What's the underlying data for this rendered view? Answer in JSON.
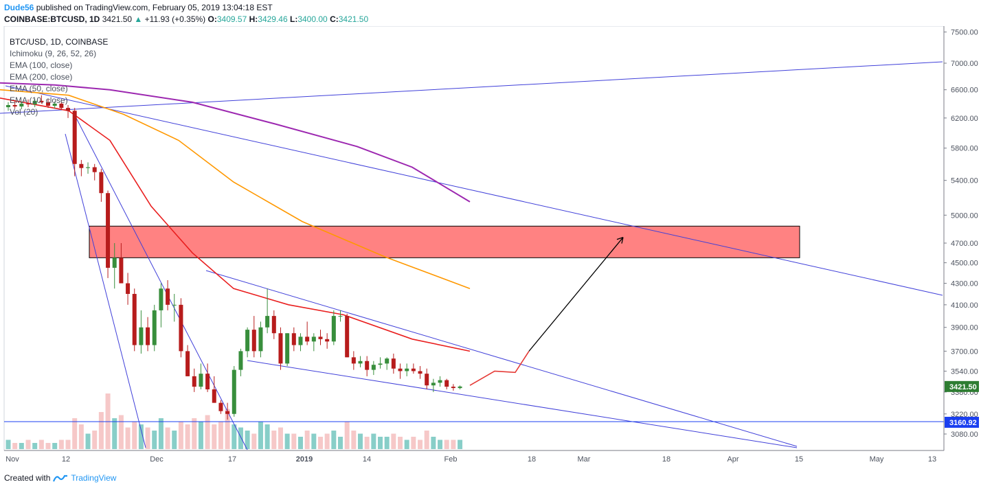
{
  "header": {
    "author": "Dude56",
    "published": "published on TradingView.com, February 05, 2019 13:04:18 EST",
    "symbol": "COINBASE:BTCUSD, 1D",
    "last": "3421.50",
    "change": "+11.93 (+0.35%)",
    "o_label": "O:",
    "o_val": "3409.57",
    "h_label": "H:",
    "h_val": "3429.46",
    "l_label": "L:",
    "l_val": "3400.00",
    "c_label": "C:",
    "c_val": "3421.50"
  },
  "legend": {
    "title": "BTC/USD, 1D, COINBASE",
    "items": [
      "Ichimoku (9, 26, 52, 26)",
      "EMA (100, close)",
      "EMA (200, close)",
      "EMA (50, close)",
      "EMA (10, close)",
      "Vol (20)"
    ]
  },
  "footer": {
    "created": "Created with",
    "brand": "TradingView"
  },
  "colors": {
    "up": "#26a69a",
    "upBody": "#388e3c",
    "down": "#b71c1c",
    "zone": "#ff5252",
    "ema200": "#9c27b0",
    "ema100": "#ff9800",
    "ema50": "#e91e1e",
    "trend": "#3f3fd9",
    "lastTag": "#2e7d32",
    "levelTag": "#1a3ff0"
  },
  "chart_data": {
    "type": "candlestick",
    "symbol": "BTC/USD, 1D, COINBASE",
    "y_ticks": [
      7500,
      7000,
      6600,
      6200,
      5800,
      5400,
      5000,
      4700,
      4500,
      4300,
      4100,
      3900,
      3700,
      3540,
      3380,
      3220,
      3080
    ],
    "x_ticks": [
      "Nov",
      "12",
      "Dec",
      "17",
      "2019",
      "14",
      "Feb",
      "18",
      "Mar",
      "18",
      "Apr",
      "15",
      "May",
      "13"
    ],
    "last_price": "3421.50",
    "level": "3160.92",
    "resistance_zone": [
      4550,
      4880
    ],
    "candles_ohlc": [
      [
        6350,
        6420,
        6300,
        6380
      ],
      [
        6380,
        6440,
        6330,
        6360
      ],
      [
        6360,
        6430,
        6320,
        6400
      ],
      [
        6400,
        6460,
        6350,
        6390
      ],
      [
        6390,
        6470,
        6350,
        6440
      ],
      [
        6440,
        6520,
        6400,
        6420
      ],
      [
        6420,
        6460,
        6340,
        6370
      ],
      [
        6370,
        6430,
        6330,
        6400
      ],
      [
        6400,
        6420,
        6310,
        6340
      ],
      [
        6340,
        6380,
        6200,
        6300
      ],
      [
        6300,
        6340,
        5450,
        5600
      ],
      [
        5600,
        5650,
        5450,
        5550
      ],
      [
        5550,
        5620,
        5480,
        5560
      ],
      [
        5560,
        5600,
        5400,
        5500
      ],
      [
        5500,
        5540,
        5150,
        5250
      ],
      [
        5250,
        5280,
        4350,
        4450
      ],
      [
        4450,
        4700,
        4250,
        4550
      ],
      [
        4550,
        4700,
        4300,
        4300
      ],
      [
        4300,
        4400,
        4100,
        4200
      ],
      [
        4200,
        4250,
        3700,
        3750
      ],
      [
        3750,
        4050,
        3680,
        3900
      ],
      [
        3900,
        3990,
        3700,
        3750
      ],
      [
        3750,
        4100,
        3700,
        4050
      ],
      [
        4050,
        4300,
        3900,
        4250
      ],
      [
        4250,
        4330,
        4050,
        4100
      ],
      [
        4100,
        4200,
        3950,
        4100
      ],
      [
        4100,
        4160,
        3650,
        3700
      ],
      [
        3700,
        3750,
        3500,
        3500
      ],
      [
        3500,
        3560,
        3380,
        3420
      ],
      [
        3420,
        3600,
        3400,
        3520
      ],
      [
        3520,
        3600,
        3380,
        3400
      ],
      [
        3400,
        3500,
        3300,
        3300
      ],
      [
        3300,
        3320,
        3220,
        3240
      ],
      [
        3240,
        3300,
        3180,
        3220
      ],
      [
        3220,
        3580,
        3200,
        3550
      ],
      [
        3550,
        3720,
        3500,
        3700
      ],
      [
        3700,
        3900,
        3650,
        3880
      ],
      [
        3880,
        4000,
        3650,
        3700
      ],
      [
        3700,
        3950,
        3650,
        3900
      ],
      [
        3900,
        4250,
        3850,
        4000
      ],
      [
        4000,
        4050,
        3800,
        3850
      ],
      [
        3850,
        3900,
        3550,
        3600
      ],
      [
        3600,
        3850,
        3580,
        3850
      ],
      [
        3850,
        3900,
        3700,
        3750
      ],
      [
        3750,
        3850,
        3700,
        3820
      ],
      [
        3820,
        3950,
        3750,
        3780
      ],
      [
        3780,
        3850,
        3700,
        3820
      ],
      [
        3820,
        3880,
        3750,
        3800
      ],
      [
        3800,
        3850,
        3720,
        3780
      ],
      [
        3780,
        4050,
        3750,
        4000
      ],
      [
        4000,
        4050,
        3950,
        4000
      ],
      [
        4000,
        4020,
        3650,
        3650
      ],
      [
        3650,
        3700,
        3550,
        3600
      ],
      [
        3600,
        3660,
        3570,
        3620
      ],
      [
        3620,
        3660,
        3500,
        3550
      ],
      [
        3550,
        3620,
        3510,
        3590
      ],
      [
        3590,
        3650,
        3560,
        3600
      ],
      [
        3600,
        3650,
        3550,
        3640
      ],
      [
        3640,
        3680,
        3520,
        3560
      ],
      [
        3560,
        3600,
        3480,
        3540
      ],
      [
        3540,
        3600,
        3500,
        3560
      ],
      [
        3560,
        3600,
        3520,
        3540
      ],
      [
        3540,
        3580,
        3480,
        3520
      ],
      [
        3520,
        3560,
        3400,
        3430
      ],
      [
        3430,
        3480,
        3380,
        3450
      ],
      [
        3450,
        3500,
        3420,
        3470
      ],
      [
        3470,
        3480,
        3400,
        3420
      ],
      [
        3420,
        3440,
        3390,
        3410
      ],
      [
        3409.57,
        3429.46,
        3400,
        3421.5
      ]
    ],
    "volume": [
      3,
      2,
      2,
      3,
      2,
      3,
      2,
      2,
      3,
      3,
      10,
      8,
      5,
      6,
      12,
      18,
      10,
      11,
      7,
      9,
      8,
      7,
      6,
      10,
      7,
      6,
      9,
      8,
      10,
      9,
      11,
      8,
      9,
      13,
      8,
      7,
      6,
      5,
      9,
      8,
      6,
      7,
      5,
      5,
      4,
      6,
      5,
      4,
      5,
      6,
      4,
      9,
      6,
      5,
      4,
      5,
      4,
      4,
      5,
      4,
      3,
      4,
      3,
      6,
      4,
      3,
      3,
      3,
      3
    ],
    "ema200": [
      [
        0,
        6700
      ],
      [
        80,
        6670
      ],
      [
        160,
        6600
      ],
      [
        280,
        6420
      ],
      [
        400,
        6120
      ],
      [
        520,
        5820
      ],
      [
        600,
        5560
      ],
      [
        684,
        5150
      ]
    ],
    "ema100": [
      [
        0,
        6600
      ],
      [
        100,
        6520
      ],
      [
        180,
        6250
      ],
      [
        260,
        5900
      ],
      [
        340,
        5380
      ],
      [
        440,
        4930
      ],
      [
        560,
        4560
      ],
      [
        684,
        4250
      ]
    ],
    "ema50": [
      [
        0,
        6480
      ],
      [
        100,
        6300
      ],
      [
        160,
        5900
      ],
      [
        220,
        5100
      ],
      [
        280,
        4600
      ],
      [
        340,
        4250
      ],
      [
        420,
        4100
      ],
      [
        500,
        4010
      ],
      [
        600,
        3800
      ],
      [
        684,
        3700
      ]
    ],
    "projection": [
      [
        684,
        3430
      ],
      [
        720,
        3540
      ],
      [
        750,
        3530
      ],
      [
        770,
        3700
      ],
      [
        907,
        4760
      ]
    ]
  }
}
